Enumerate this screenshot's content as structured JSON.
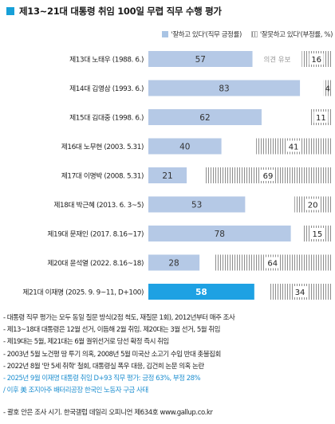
{
  "title": "제13~21대 대통령 취임 100일 무렵 직무 수행 평가",
  "legend": {
    "approve": "'잘하고 있다'(직무 긍정률)",
    "disapprove": "'잘못하고 있다'(부정률, %)"
  },
  "chart_data": {
    "type": "bar",
    "orientation": "horizontal",
    "stacked": true,
    "xlim": [
      0,
      100
    ],
    "categories": [
      "제13대 노태우 (1988. 6.)",
      "제14대 김영삼 (1993. 6.)",
      "제15대 김대중 (1998. 6.)",
      "제16대 노무현 (2003. 5.31)",
      "제17대 이명박 (2008. 5.31)",
      "제18대 박근혜 (2013. 6. 3~5)",
      "제19대 문재인 (2017. 8.16~17)",
      "제20대 윤석열 (2022. 8.16~18)",
      "제21대 이재명 (2025. 9. 9~11, D+100)"
    ],
    "series": [
      {
        "name": "'잘하고 있다'(직무 긍정률)",
        "values": [
          57,
          83,
          62,
          40,
          21,
          53,
          78,
          28,
          58
        ]
      },
      {
        "name": "'잘못하고 있다'(부정률, %)",
        "values": [
          16,
          4,
          11,
          41,
          69,
          20,
          15,
          64,
          34
        ]
      }
    ],
    "annotations": [
      {
        "category_index": 0,
        "text": "의견 유보"
      }
    ],
    "highlight_index": 8,
    "colors": {
      "approve": "#b5c9e6",
      "approve_highlight": "#1ea1e3",
      "disapprove_stripe": "#8d8d8d"
    }
  },
  "notes": [
    "- 대통령 직무 평가는 모두 동일 질문 방식(2점 척도, 재질문 1회), 2012년부터 매주 조사",
    "- 제13~18대 대통령은 12월 선거, 이듬해 2월 취임. 제20대는 3월 선거, 5월 취임",
    "- 제19대는 5월, 제21대는 6월 궐위선거로 당선 확정 즉시 취임",
    "- 2003년 5월 노건평 땅 투기 의혹, 2008년 5월 미국산 소고기 수입 반대 촛불집회",
    "- 2022년 8월 '만 5세 취학' 철회, 대통령실 폭우 대응, 김건희 논문 의혹 논란",
    "- 2025년 9월 이재명 대통령 취임 D+93 직무 평가: 긍정 63%, 부정 28%",
    "  / 이후 美 조지아주 배터리공장 한국인 노동자 구금 사태"
  ],
  "source": "- 괄호 안은 조사 시기. 한국갤럽 데일리 오피니언 제634호 www.gallup.co.kr"
}
